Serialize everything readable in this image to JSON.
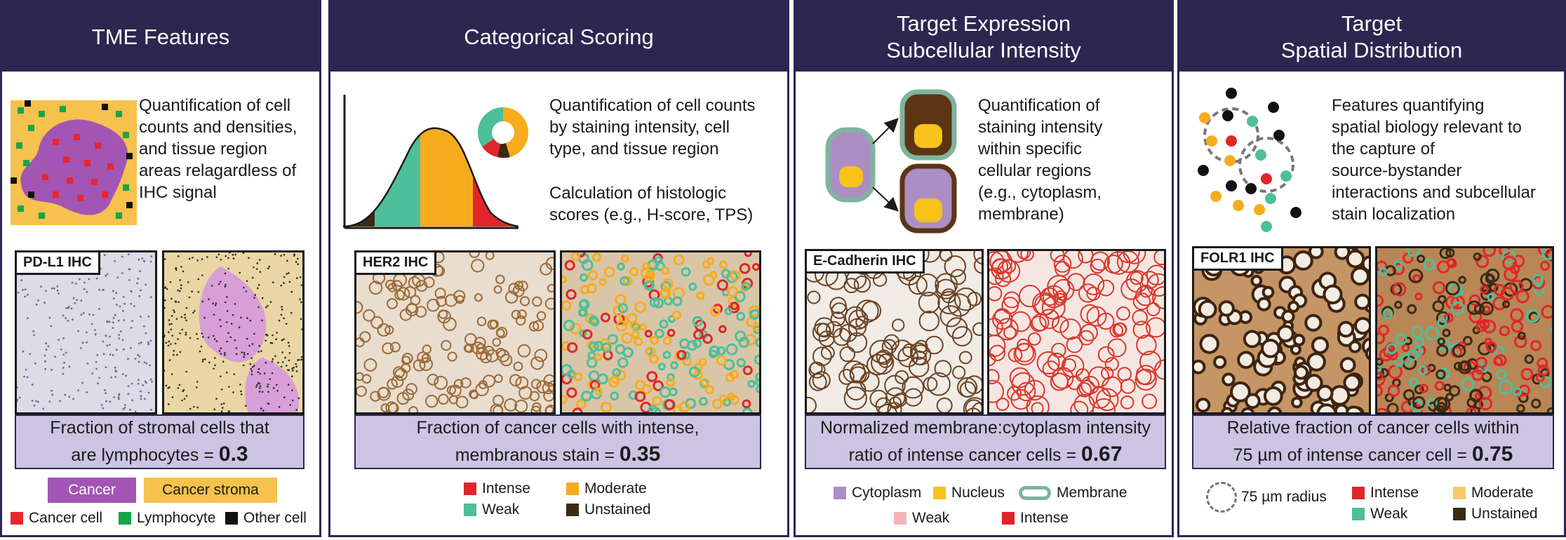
{
  "colors": {
    "header_bg": "#2d2650",
    "metric_bg": "#ccc4e3",
    "cancer": "#a255b3",
    "stroma": "#f6c14c",
    "cancer_cell": "#e8262b",
    "lymphocyte": "#16a54a",
    "other_cell": "#111111",
    "intense": "#e0262b",
    "moderate": "#f7ac1d",
    "weak": "#4dbf9a",
    "unstained": "#3b2a14",
    "cytoplasm": "#ac8ec4",
    "nucleus": "#f7c21a",
    "membrane": "#7fb49e",
    "weak_pink": "#f4b5b8"
  },
  "panels": [
    {
      "title": "TME Features",
      "description": [
        "Quantification of cell",
        "counts and densities,",
        "and tissue region",
        "areas relagardless of",
        "IHC signal"
      ],
      "tag": "PD-L1 IHC",
      "metric_lines": [
        "Fraction of stromal cells that",
        "are lymphocytes = "
      ],
      "metric_value": "0.3",
      "legend_regions": [
        "Cancer",
        "Cancer stroma"
      ],
      "legend_cells": [
        "Cancer cell",
        "Lymphocyte",
        "Other cell"
      ]
    },
    {
      "title": "Categorical Scoring",
      "description": [
        "Quantification of cell counts",
        "by staining intensity, cell",
        "type, and tissue region"
      ],
      "description2": [
        "Calculation of histologic",
        "scores (e.g., H-score, TPS)"
      ],
      "tag": "HER2 IHC",
      "metric_lines": [
        "Fraction of cancer cells with intense,",
        "membranous stain = "
      ],
      "metric_value": "0.35",
      "legend": [
        "Intense",
        "Moderate",
        "Weak",
        "Unstained"
      ]
    },
    {
      "title_lines": [
        "Target Expression",
        "Subcellular Intensity"
      ],
      "description": [
        "Quantification of",
        "staining intensity",
        "within specific",
        "cellular regions",
        "(e.g., cytoplasm,",
        "membrane)"
      ],
      "tag": "E-Cadherin IHC",
      "metric_lines": [
        "Normalized membrane:cytoplasm intensity",
        "ratio of intense cancer cells = "
      ],
      "metric_value": "0.67",
      "legend": [
        "Cytoplasm",
        "Nucleus",
        "Membrane",
        "Weak",
        "Intense"
      ]
    },
    {
      "title_lines": [
        "Target",
        "Spatial Distribution"
      ],
      "description": [
        "Features quantifying",
        "spatial biology relevant to",
        "the capture of",
        "source-bystander",
        "interactions and subcellular",
        "stain localization"
      ],
      "tag": "FOLR1 IHC",
      "metric_lines": [
        "Relative fraction of cancer cells within",
        "75 µm of intense cancer cell = "
      ],
      "metric_value": "0.75",
      "legend": [
        "75 µm radius",
        "Intense",
        "Moderate",
        "Weak",
        "Unstained"
      ]
    }
  ]
}
